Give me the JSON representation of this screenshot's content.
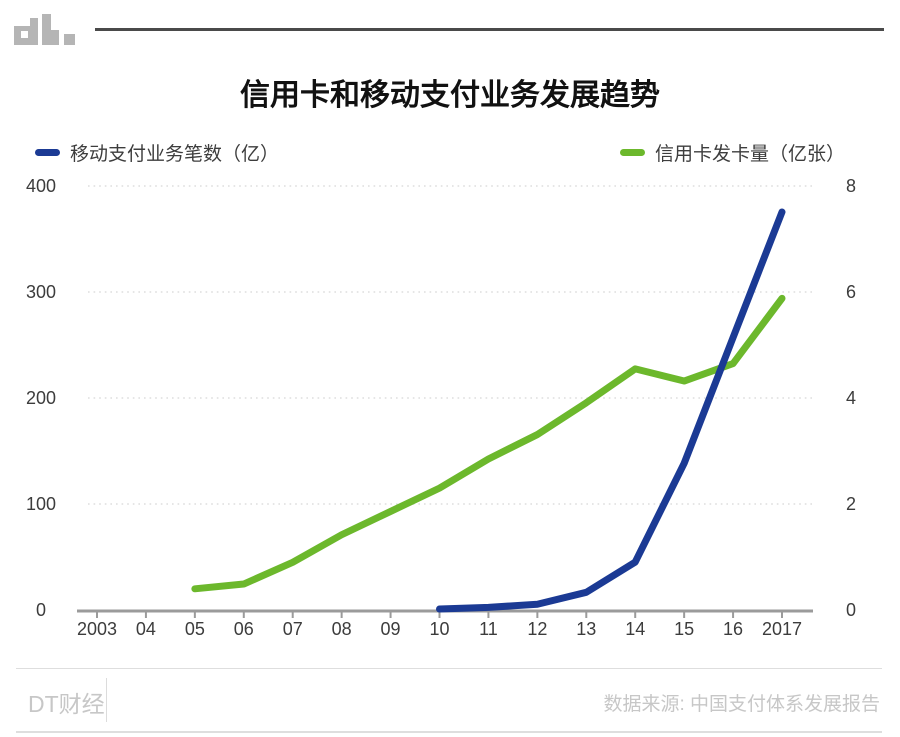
{
  "header": {
    "logo": "dt-logo",
    "logo_color": "#b5b5b5"
  },
  "legend": [
    {
      "label": "移动支付业务笔数（亿）",
      "color": "#1b3a94"
    },
    {
      "label": "信用卡发卡量（亿张）",
      "color": "#6cb82c"
    }
  ],
  "chart_data": {
    "type": "line",
    "title": "信用卡和移动支付业务发展趋势",
    "x_ticks": [
      "2003",
      "04",
      "05",
      "06",
      "07",
      "08",
      "09",
      "10",
      "11",
      "12",
      "13",
      "14",
      "15",
      "16",
      "2017"
    ],
    "x_years": [
      2003,
      2004,
      2005,
      2006,
      2007,
      2008,
      2009,
      2010,
      2011,
      2012,
      2013,
      2014,
      2015,
      2016,
      2017
    ],
    "left_axis": {
      "ticks": [
        0,
        100,
        200,
        300,
        400
      ],
      "range": [
        0,
        400
      ]
    },
    "right_axis": {
      "ticks": [
        0,
        2,
        4,
        6,
        8
      ],
      "range": [
        0,
        8
      ]
    },
    "grid": "dotted horizontal gridlines at left-axis ticks, legend top, no vertical grid",
    "series": [
      {
        "name": "移动支付业务笔数（亿）",
        "axis": "left",
        "color": "#1b3a94",
        "x": [
          2010,
          2011,
          2012,
          2013,
          2014,
          2015,
          2016,
          2017
        ],
        "values": [
          0.9,
          2.5,
          5.4,
          16.7,
          45.2,
          138.4,
          257.1,
          375.5
        ]
      },
      {
        "name": "信用卡发卡量（亿张）",
        "axis": "right",
        "color": "#6cb82c",
        "x": [
          2005,
          2006,
          2007,
          2008,
          2009,
          2010,
          2011,
          2012,
          2013,
          2014,
          2015,
          2016,
          2017
        ],
        "values": [
          0.4,
          0.49,
          0.9,
          1.42,
          1.86,
          2.3,
          2.85,
          3.31,
          3.91,
          4.55,
          4.32,
          4.65,
          5.88
        ]
      }
    ],
    "axis_color": "#9b9b9b",
    "grid_color": "#dddddd",
    "tick_label_color": "#3c3c3c"
  },
  "footer": {
    "brand": "DT财经",
    "source": "数据来源: 中国支付体系发展报告"
  }
}
